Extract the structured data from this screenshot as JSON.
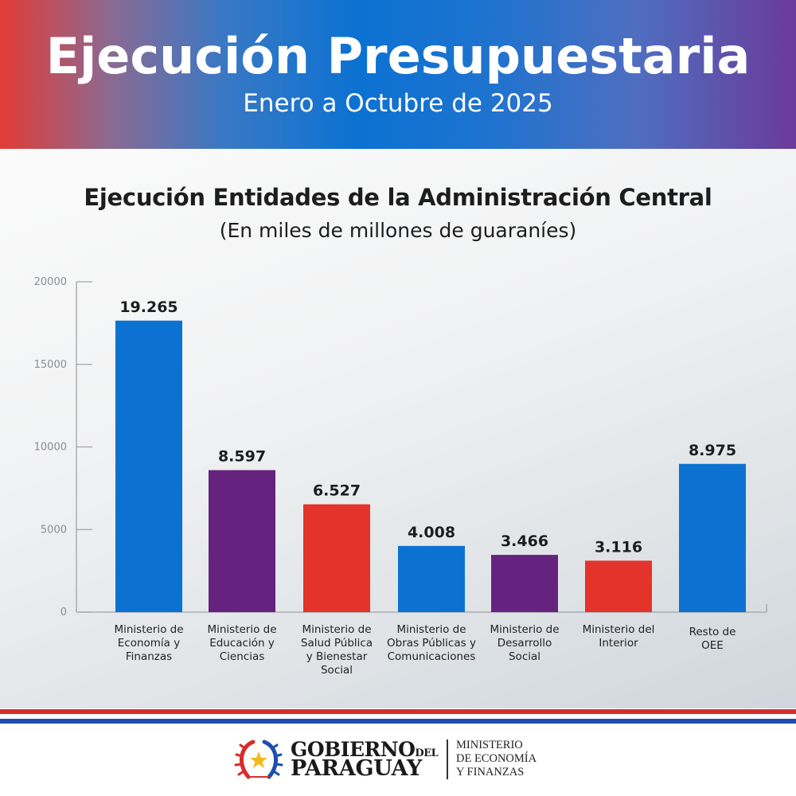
{
  "header": {
    "title": "Ejecución Presupuestaria",
    "subtitle": "Enero a Octubre de 2025"
  },
  "colors": {
    "blue": "#0b72d2",
    "purple": "#65237f",
    "red": "#e3332a",
    "stripe_red": "#d92b2b",
    "stripe_blue": "#1d4eb0"
  },
  "chart_data": {
    "type": "bar",
    "title": "Ejecución Entidades de la Administración Central",
    "subtitle": "(En miles de millones de guaraníes)",
    "xlabel": "",
    "ylabel": "",
    "ylim": [
      0,
      20000
    ],
    "yticks": [
      0,
      5000,
      10000,
      15000,
      20000
    ],
    "ytick_labels": [
      "0",
      "5000",
      "10000",
      "15000",
      "20000"
    ],
    "grid": false,
    "legend": "none",
    "categories": [
      "Ministerio de\nEconomía y\nFinanzas",
      "Ministerio de\nEducación y\nCiencias",
      "Ministerio de\nSalud Pública\ny Bienestar\nSocial",
      "Ministerio de\nObras Públicas y\nComunicaciones",
      "Ministerio de\nDesarrollo\nSocial",
      "Ministerio del\nInterior",
      "Resto de\nOEE"
    ],
    "values": [
      19265,
      8597,
      6527,
      4008,
      3466,
      3116,
      8975
    ],
    "data_labels": [
      "19.265",
      "8.597",
      "6.527",
      "4.008",
      "3.466",
      "3.116",
      "8.975"
    ],
    "bar_colors": [
      "#0b72d2",
      "#65237f",
      "#e3332a",
      "#0b72d2",
      "#65237f",
      "#e3332a",
      "#0b72d2"
    ]
  },
  "footer": {
    "gov_line1": "GOBIERNO",
    "gov_del": "DEL",
    "gov_line2": "PARAGUAY",
    "ministry_line1": "MINISTERIO",
    "ministry_line2": "DE ECONOMÍA",
    "ministry_line3": "Y FINANZAS"
  }
}
